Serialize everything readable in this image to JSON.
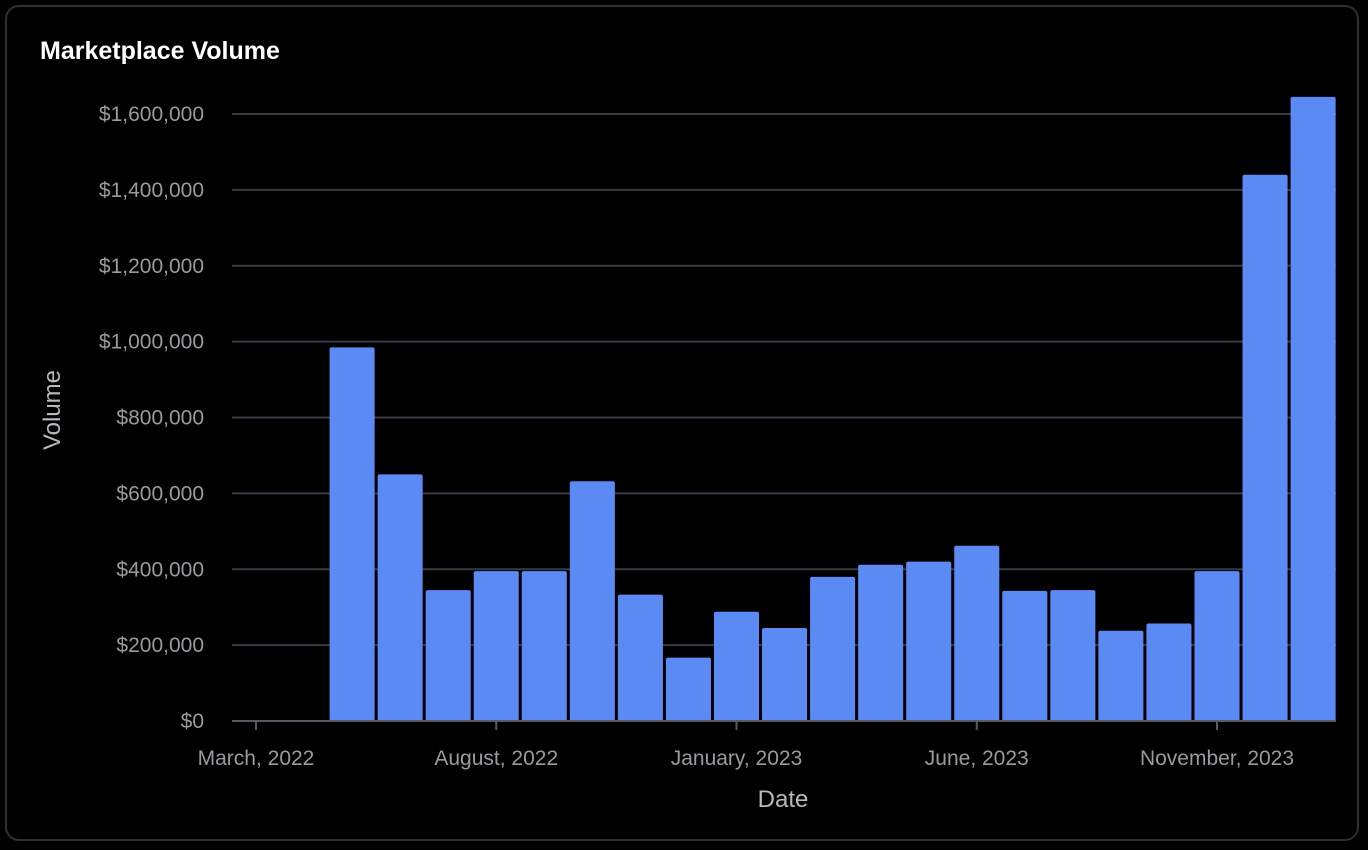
{
  "chart_data": {
    "type": "bar",
    "title": "Marketplace Volume",
    "xlabel": "Date",
    "ylabel": "Volume",
    "x_tick_labels": [
      "March, 2022",
      "August, 2022",
      "January, 2023",
      "June, 2023",
      "November, 2023"
    ],
    "y_tick_labels": [
      "$0",
      "$200,000",
      "$400,000",
      "$600,000",
      "$800,000",
      "$1,000,000",
      "$1,200,000",
      "$1,400,000",
      "$1,600,000"
    ],
    "categories": [
      "2022-03",
      "2022-04",
      "2022-05",
      "2022-06",
      "2022-07",
      "2022-08",
      "2022-09",
      "2022-10",
      "2022-11",
      "2022-12",
      "2023-01",
      "2023-02",
      "2023-03",
      "2023-04",
      "2023-05",
      "2023-06",
      "2023-07",
      "2023-08",
      "2023-09",
      "2023-10",
      "2023-11",
      "2023-12",
      "2024-01"
    ],
    "values": [
      0,
      0,
      985000,
      650000,
      345000,
      395000,
      395000,
      632000,
      333000,
      167000,
      288000,
      245000,
      380000,
      412000,
      420000,
      462000,
      343000,
      345000,
      238000,
      257000,
      395000,
      1440000,
      1645000
    ],
    "ylim": [
      0,
      1650000
    ],
    "yticks": [
      0,
      200000,
      400000,
      600000,
      800000,
      1000000,
      1200000,
      1400000,
      1600000
    ],
    "grid": true,
    "legend": "none",
    "colors": {
      "bar": "#5b8af5",
      "grid": "#3a3a44",
      "axis": "#5a5a63",
      "background": "#000000"
    }
  }
}
